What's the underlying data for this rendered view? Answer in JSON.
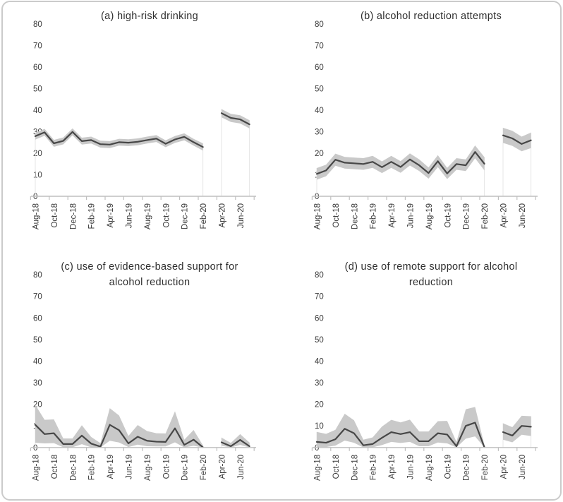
{
  "figure": {
    "background": "#ffffff",
    "border_color": "#cbcbcb"
  },
  "colors": {
    "line": "#474747",
    "band": "#c9c9c9",
    "axis": "#bfbfbf",
    "tick_text": "#3a3a3a",
    "title_text": "#2f2f2f",
    "gap_edge": "#e5e5e5"
  },
  "axes": {
    "ylim": [
      0,
      80
    ],
    "y_ticks": [
      0,
      10,
      20,
      30,
      40,
      50,
      60,
      70,
      80
    ],
    "x_tick_labels": [
      "Aug-18",
      "Oct-18",
      "Dec-18",
      "Feb-19",
      "Apr-19",
      "Jun-19",
      "Aug-19",
      "Oct-19",
      "Dec-19",
      "Feb-20",
      "Apr-20",
      "Jun-20"
    ],
    "months_total": 24,
    "label_every_n_months": 2,
    "gap_month_index": 19,
    "grid": false,
    "legend": false
  },
  "chart_data": [
    {
      "id": "a",
      "type": "line",
      "title": "(a) high-risk drinking",
      "band": "confidence interval",
      "values": [
        27.9,
        29.7,
        24.6,
        25.7,
        29.9,
        25.6,
        26.1,
        24.2,
        24.0,
        25.1,
        24.9,
        25.3,
        26.1,
        26.8,
        24.4,
        26.4,
        27.6,
        25.1,
        22.9,
        null,
        38.6,
        36.4,
        35.7,
        33.4
      ],
      "lower": [
        26.3,
        28.1,
        23.0,
        24.1,
        28.3,
        24.0,
        24.5,
        22.6,
        22.4,
        23.5,
        23.3,
        23.7,
        24.5,
        25.2,
        22.8,
        24.8,
        26.0,
        23.5,
        21.2,
        null,
        36.7,
        34.5,
        33.8,
        31.5
      ],
      "upper": [
        29.5,
        31.3,
        26.2,
        27.3,
        31.5,
        27.2,
        27.7,
        25.8,
        25.6,
        26.7,
        26.5,
        26.9,
        27.7,
        28.4,
        26.0,
        28.0,
        29.2,
        26.7,
        24.6,
        null,
        40.5,
        38.3,
        37.6,
        35.3
      ]
    },
    {
      "id": "b",
      "type": "line",
      "title": "(b) alcohol reduction attempts",
      "band": "confidence interval",
      "values": [
        10.4,
        12.0,
        17.0,
        15.6,
        15.3,
        15.0,
        16.0,
        13.5,
        16.0,
        13.6,
        17.1,
        14.4,
        10.8,
        16.3,
        10.6,
        15.0,
        14.4,
        20.6,
        15.1,
        null,
        28.3,
        26.9,
        24.3,
        26.0
      ],
      "lower": [
        7.7,
        9.3,
        14.2,
        12.9,
        12.6,
        12.3,
        13.2,
        10.8,
        13.2,
        10.9,
        14.3,
        11.7,
        8.2,
        13.5,
        8.0,
        12.3,
        11.7,
        17.6,
        12.0,
        null,
        24.8,
        23.4,
        20.9,
        22.4
      ],
      "upper": [
        13.1,
        14.7,
        19.8,
        18.3,
        18.0,
        17.7,
        18.8,
        16.2,
        18.8,
        16.3,
        19.9,
        17.1,
        13.4,
        19.1,
        13.2,
        17.7,
        17.1,
        23.6,
        18.2,
        null,
        31.8,
        30.4,
        27.7,
        29.6
      ]
    },
    {
      "id": "c",
      "type": "line",
      "title": "(c) use of evidence-based support for alcohol reduction",
      "band": "confidence interval",
      "values": [
        10.5,
        6.2,
        6.6,
        1.6,
        1.6,
        5.5,
        1.8,
        0.4,
        10.5,
        8.0,
        1.9,
        5.0,
        3.1,
        2.7,
        2.6,
        8.9,
        1.2,
        3.6,
        0.1,
        null,
        2.4,
        0.6,
        3.5,
        0.6
      ],
      "lower": [
        2.2,
        1.9,
        2.0,
        0.1,
        0.1,
        1.5,
        0.1,
        0.0,
        3.1,
        2.3,
        0.2,
        1.3,
        0.6,
        0.5,
        0.5,
        2.4,
        0.0,
        0.8,
        0.0,
        null,
        0.8,
        0.0,
        1.2,
        0.0
      ],
      "upper": [
        19.8,
        12.8,
        13.0,
        4.2,
        4.2,
        10.3,
        4.9,
        2.0,
        18.2,
        14.8,
        5.3,
        10.4,
        7.6,
        6.6,
        6.5,
        16.8,
        3.6,
        8.1,
        1.0,
        null,
        4.6,
        2.1,
        6.2,
        2.3
      ]
    },
    {
      "id": "d",
      "type": "line",
      "title": "(d) use of remote support for alcohol reduction",
      "band": "confidence interval",
      "values": [
        2.6,
        2.2,
        3.8,
        8.7,
        6.6,
        1.0,
        1.6,
        4.5,
        7.1,
        6.2,
        7.1,
        2.9,
        2.9,
        6.6,
        6.0,
        0.6,
        10.0,
        11.5,
        0.1,
        null,
        7.1,
        5.5,
        10.0,
        9.6
      ],
      "lower": [
        0.3,
        0.2,
        0.9,
        3.2,
        2.2,
        0.0,
        0.1,
        1.1,
        2.6,
        2.1,
        2.6,
        0.6,
        0.6,
        2.3,
        1.9,
        0.0,
        4.1,
        5.1,
        0.0,
        null,
        3.6,
        2.4,
        5.9,
        5.3
      ],
      "upper": [
        7.2,
        6.3,
        8.2,
        15.6,
        12.6,
        3.6,
        4.7,
        9.7,
        12.8,
        11.6,
        12.9,
        7.4,
        7.4,
        12.2,
        12.3,
        2.6,
        17.7,
        18.8,
        1.1,
        null,
        11.2,
        9.4,
        14.7,
        14.5
      ]
    }
  ]
}
